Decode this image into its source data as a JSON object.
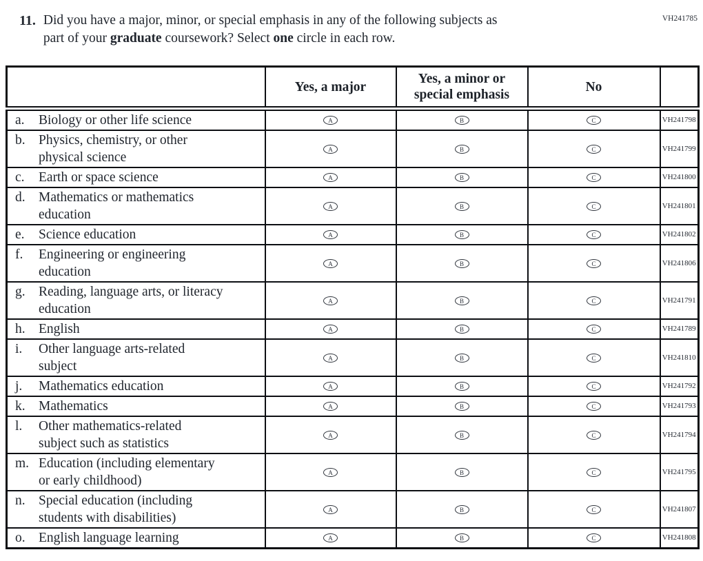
{
  "page": {
    "top_code": "VH241785"
  },
  "question": {
    "number": "11.",
    "line1": "Did you have a major, minor, or special emphasis in any of the following subjects as",
    "line2_part1": "part of your ",
    "line2_bold1": "graduate",
    "line2_part2": " coursework? Select ",
    "line2_bold2": "one",
    "line2_part3": " circle in each row."
  },
  "table": {
    "columns": [
      "",
      "Yes, a major",
      "Yes, a minor or special emphasis",
      "No",
      ""
    ],
    "options": [
      "A",
      "B",
      "C"
    ],
    "rows": [
      {
        "letter": "a.",
        "label": "Biology or other life science",
        "label2": "",
        "code": "VH241798"
      },
      {
        "letter": "b.",
        "label": "Physics, chemistry, or other",
        "label2": "physical science",
        "code": "VH241799"
      },
      {
        "letter": "c.",
        "label": "Earth or space science",
        "label2": "",
        "code": "VH241800"
      },
      {
        "letter": "d.",
        "label": "Mathematics or mathematics",
        "label2": "education",
        "code": "VH241801"
      },
      {
        "letter": "e.",
        "label": "Science education",
        "label2": "",
        "code": "VH241802"
      },
      {
        "letter": "f.",
        "label": "Engineering or engineering",
        "label2": "education",
        "code": "VH241806"
      },
      {
        "letter": "g.",
        "label": "Reading, language arts, or literacy",
        "label2": "education",
        "code": "VH241791"
      },
      {
        "letter": "h.",
        "label": "English",
        "label2": "",
        "code": "VH241789"
      },
      {
        "letter": "i.",
        "label": "Other language arts-related",
        "label2": "subject",
        "code": "VH241810"
      },
      {
        "letter": "j.",
        "label": "Mathematics education",
        "label2": "",
        "code": "VH241792"
      },
      {
        "letter": "k.",
        "label": "Mathematics",
        "label2": "",
        "code": "VH241793"
      },
      {
        "letter": "l.",
        "label": "Other mathematics-related",
        "label2": "subject such as statistics",
        "code": "VH241794"
      },
      {
        "letter": "m.",
        "label": "Education (including elementary",
        "label2": "or early childhood)",
        "code": "VH241795"
      },
      {
        "letter": "n.",
        "label": "Special education (including",
        "label2": "students with disabilities)",
        "code": "VH241807"
      },
      {
        "letter": "o.",
        "label": "English language learning",
        "label2": "",
        "code": "VH241808"
      }
    ]
  }
}
